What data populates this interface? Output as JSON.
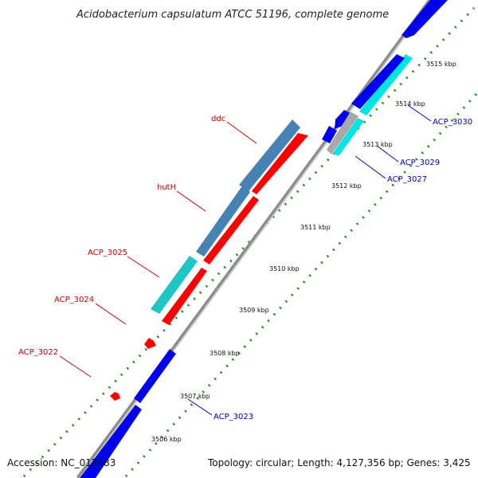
{
  "title": "Acidobacterium capsulatum ATCC 51196, complete genome",
  "footer": {
    "accession": "Accession: NC_012483",
    "summary": "Topology: circular; Length: 4,127,356 bp; Genes: 3,425"
  },
  "colors": {
    "backbone": "#8c8c8c",
    "tick_dots": "#1a8a1a",
    "forward_gene": "#0000ee",
    "forward_gene_alt": "#00e5e5",
    "reverse_gene": "#ff0000",
    "reverse_gene_alt": "#4682b4",
    "reverse_gene_alt2": "#20c5c5",
    "reverse_label": "#cc0000",
    "forward_label": "#0000cc"
  },
  "scale_ticks": [
    {
      "label": "3506 kbp"
    },
    {
      "label": "3507 kbp"
    },
    {
      "label": "3508 kbp"
    },
    {
      "label": "3509 kbp"
    },
    {
      "label": "3510 kbp"
    },
    {
      "label": "3511 kbp"
    },
    {
      "label": "3512 kbp"
    },
    {
      "label": "3513 kbp"
    },
    {
      "label": "3514 kbp"
    },
    {
      "label": "3515 kbp"
    }
  ],
  "gene_labels": {
    "reverse": [
      "ddc",
      "hutH",
      "ACP_3025",
      "ACP_3024",
      "ACP_3022"
    ],
    "forward": [
      "ACP_3030",
      "ACP_3029",
      "ACP_3027",
      "ACP_3023"
    ]
  }
}
